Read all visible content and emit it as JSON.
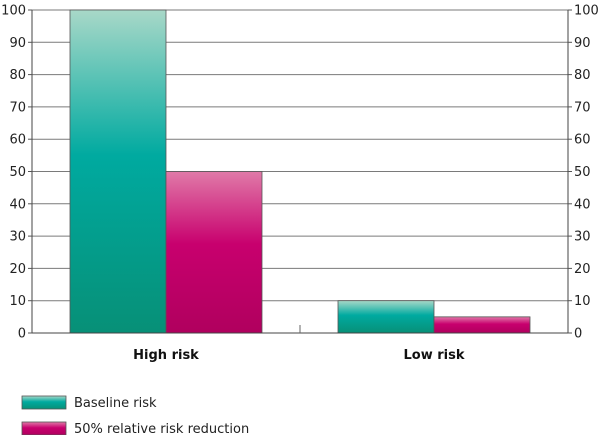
{
  "chart_data": {
    "type": "bar",
    "categories": [
      "High risk",
      "Low risk"
    ],
    "series": [
      {
        "name": "Baseline risk",
        "values": [
          100,
          10
        ]
      },
      {
        "name": "50% relative risk reduction",
        "values": [
          50,
          5
        ]
      }
    ],
    "ylim": [
      0,
      100
    ],
    "yticks": [
      0,
      10,
      20,
      30,
      40,
      50,
      60,
      70,
      80,
      90,
      100
    ],
    "grid": true,
    "legend_position": "bottom-left",
    "colors": {
      "baseline_top": "#a8d8c8",
      "baseline_mid": "#00aaa0",
      "baseline_bottom": "#079077",
      "reduction_top": "#e07aa8",
      "reduction_mid": "#c8006e",
      "reduction_bottom": "#b0005e"
    }
  }
}
